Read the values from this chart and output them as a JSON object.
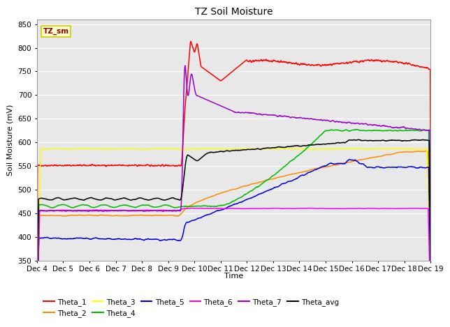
{
  "title": "TZ Soil Moisture",
  "xlabel": "Time",
  "ylabel": "Soil Moisture (mV)",
  "ylim": [
    350,
    860
  ],
  "yticks": [
    350,
    400,
    450,
    500,
    550,
    600,
    650,
    700,
    750,
    800,
    850
  ],
  "bg_color": "#e8e8e8",
  "legend_label": "TZ_sm",
  "series_colors": {
    "Theta_1": "#ff0000",
    "Theta_2": "#ff8c00",
    "Theta_3": "#ffff00",
    "Theta_4": "#00bb00",
    "Theta_5": "#0000dd",
    "Theta_6": "#ff00ff",
    "Theta_7": "#9900cc",
    "Theta_avg": "#000000"
  },
  "xtick_labels": [
    "Dec 4",
    "Dec 5",
    "Dec 6",
    "Dec 7",
    "Dec 8",
    "Dec 9",
    "Dec 10",
    "Dec 11",
    "Dec 12",
    "Dec 13",
    "Dec 14",
    "Dec 15",
    "Dec 16",
    "Dec 17",
    "Dec 18",
    "Dec 19"
  ],
  "figsize": [
    6.4,
    4.8
  ],
  "dpi": 100
}
